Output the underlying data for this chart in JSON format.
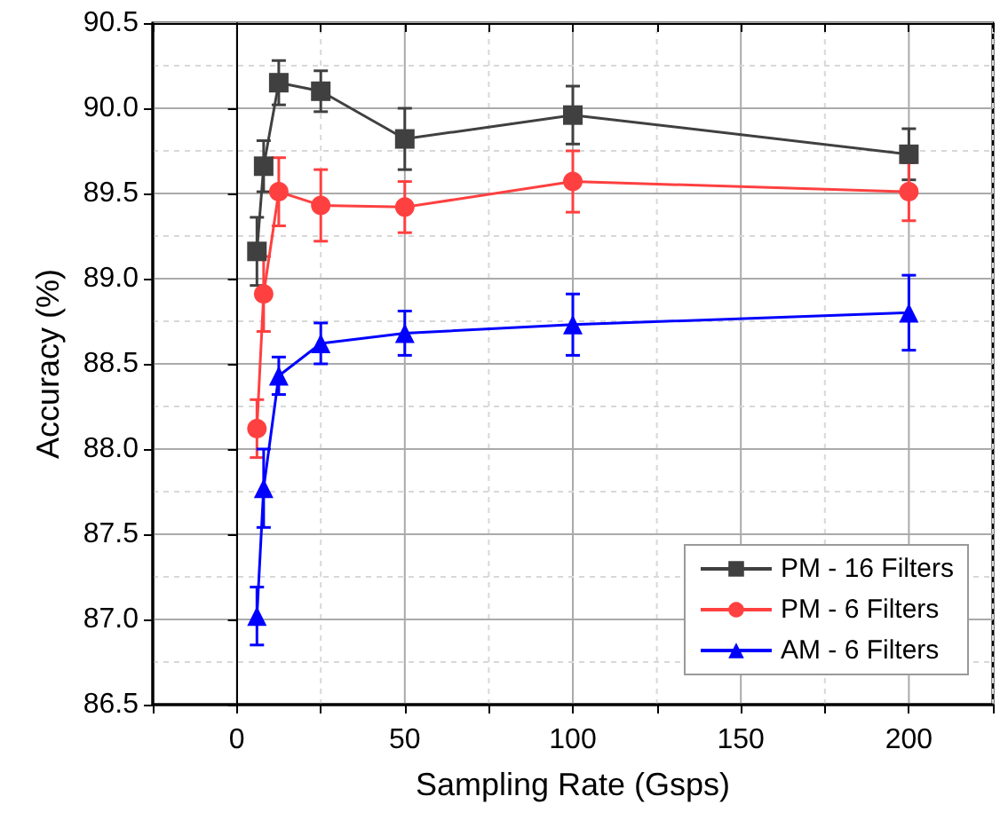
{
  "chart_data": {
    "type": "line",
    "xlabel": "Sampling Rate (Gsps)",
    "ylabel": "Accuracy (%)",
    "x": [
      6,
      8,
      12.5,
      25,
      50,
      100,
      200
    ],
    "series": [
      {
        "name": "PM - 16 Filters",
        "color": "#404040",
        "marker": "square",
        "values": [
          89.16,
          89.66,
          90.15,
          90.1,
          89.82,
          89.96,
          89.73
        ],
        "errors": [
          0.2,
          0.15,
          0.13,
          0.12,
          0.18,
          0.17,
          0.15
        ]
      },
      {
        "name": "PM - 6 Filters",
        "color": "#ff4040",
        "marker": "circle",
        "values": [
          88.12,
          88.91,
          89.51,
          89.43,
          89.42,
          89.57,
          89.51
        ],
        "errors": [
          0.17,
          0.22,
          0.2,
          0.21,
          0.15,
          0.18,
          0.17
        ]
      },
      {
        "name": "AM - 6 Filters",
        "color": "#0000ff",
        "marker": "triangle",
        "values": [
          87.02,
          87.77,
          88.43,
          88.62,
          88.68,
          88.73,
          88.8
        ],
        "errors": [
          0.17,
          0.23,
          0.11,
          0.12,
          0.13,
          0.18,
          0.22
        ]
      }
    ],
    "xlim": [
      -25,
      225
    ],
    "xticks": [
      0,
      50,
      100,
      150,
      200
    ],
    "ylim": [
      86.5,
      90.5
    ],
    "yticks": [
      86.5,
      {
        "value": 87,
        "label": "87.0"
      },
      87.5,
      {
        "value": 88,
        "label": "88.0"
      },
      88.5,
      {
        "value": 89,
        "label": "89.0"
      },
      89.5,
      {
        "value": 90,
        "label": "90.0"
      },
      90.5
    ],
    "grid": true,
    "legend": "bottom right",
    "line_style": "solid"
  }
}
